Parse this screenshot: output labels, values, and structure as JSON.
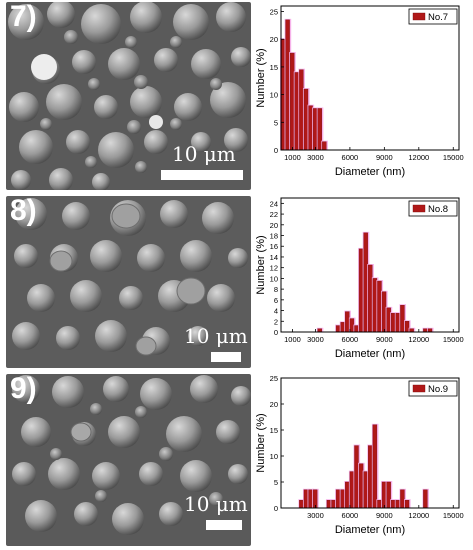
{
  "panels": [
    {
      "label": "7)",
      "scale_label": "10 μm",
      "chart_data": {
        "type": "bar",
        "legend": "No.7",
        "legend_position": "top-right",
        "xlabel": "Diameter (nm)",
        "ylabel": "Number (%)",
        "xlim": [
          0,
          15500
        ],
        "ylim": [
          0,
          26
        ],
        "xticks": [
          1000,
          3000,
          6000,
          9000,
          12000,
          15000
        ],
        "yticks": [
          0,
          5,
          10,
          15,
          20,
          25
        ],
        "bin_width": 400,
        "x": [
          200,
          600,
          1000,
          1400,
          1800,
          2200,
          2600,
          3000,
          3400,
          3800
        ],
        "values": [
          20,
          23.5,
          17.5,
          14,
          14.5,
          11,
          8,
          7.5,
          7.5,
          1.5
        ]
      }
    },
    {
      "label": "8)",
      "scale_label": "10 μm",
      "chart_data": {
        "type": "bar",
        "legend": "No.8",
        "legend_position": "top-right",
        "xlabel": "Diameter (nm)",
        "ylabel": "Number (%)",
        "xlim": [
          0,
          15500
        ],
        "ylim": [
          0,
          25
        ],
        "xticks": [
          1000,
          3000,
          6000,
          9000,
          12000,
          15000
        ],
        "yticks": [
          0,
          2,
          4,
          6,
          8,
          10,
          12,
          14,
          16,
          18,
          20,
          22,
          24
        ],
        "bin_width": 400,
        "x": [
          3400,
          5000,
          5400,
          5800,
          6200,
          6600,
          7000,
          7400,
          7800,
          8200,
          8600,
          9000,
          9400,
          9800,
          10200,
          10600,
          11000,
          11400,
          12600,
          13000
        ],
        "values": [
          0.6,
          1.2,
          1.8,
          3.8,
          2.5,
          1.2,
          15.5,
          18.5,
          12.5,
          10,
          9.5,
          7.5,
          4.5,
          3.5,
          3.5,
          5,
          2,
          0.6,
          0.6,
          0.6
        ]
      }
    },
    {
      "label": "9)",
      "scale_label": "10 μm",
      "chart_data": {
        "type": "bar",
        "legend": "No.9",
        "legend_position": "top-right",
        "xlabel": "Diameter (nm)",
        "ylabel": "Number (%)",
        "xlim": [
          0,
          15500
        ],
        "ylim": [
          0,
          25
        ],
        "xticks": [
          3000,
          6000,
          9000,
          12000,
          15000
        ],
        "yticks": [
          0,
          5,
          10,
          15,
          20,
          25
        ],
        "bin_width": 400,
        "x": [
          1800,
          2200,
          2600,
          3000,
          4200,
          4600,
          5000,
          5400,
          5800,
          6200,
          6600,
          7000,
          7400,
          7800,
          8200,
          8600,
          9000,
          9400,
          9800,
          10200,
          10600,
          11000,
          12600
        ],
        "values": [
          1.5,
          3.5,
          3.5,
          3.5,
          1.5,
          1.5,
          3.5,
          3.5,
          5,
          7,
          12,
          8.5,
          7,
          12,
          16,
          1.5,
          5,
          5,
          1.5,
          1.5,
          3.5,
          1.5,
          3.5
        ]
      }
    }
  ]
}
